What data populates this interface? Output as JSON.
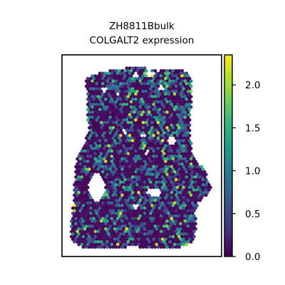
{
  "chart_data": {
    "type": "scatter",
    "subtype": "spatial-hexbin",
    "title_line1": "ZH8811Bbulk",
    "title_line2": "COLGALT2 expression",
    "xlabel": "",
    "ylabel": "",
    "show_axis_ticks": false,
    "grid": false,
    "colormap": "viridis",
    "colorbar": {
      "min": 0.0,
      "max": 2.35,
      "ticks": [
        0.0,
        0.5,
        1.0,
        1.5,
        2.0
      ],
      "tick_labels": [
        "0.0",
        "0.5",
        "1.0",
        "1.5",
        "2.0"
      ],
      "position": "right"
    },
    "colors": {
      "viridis_stops": [
        "#440154",
        "#482878",
        "#3e4989",
        "#31688e",
        "#26828e",
        "#1f9e89",
        "#35b779",
        "#6ece58",
        "#b5de2b",
        "#fde725"
      ],
      "frame": "#000000"
    },
    "value_distribution": {
      "typical_background": 0.1,
      "common_mid": 0.7,
      "sparse_high": 1.6,
      "rare_max": 2.3
    }
  }
}
